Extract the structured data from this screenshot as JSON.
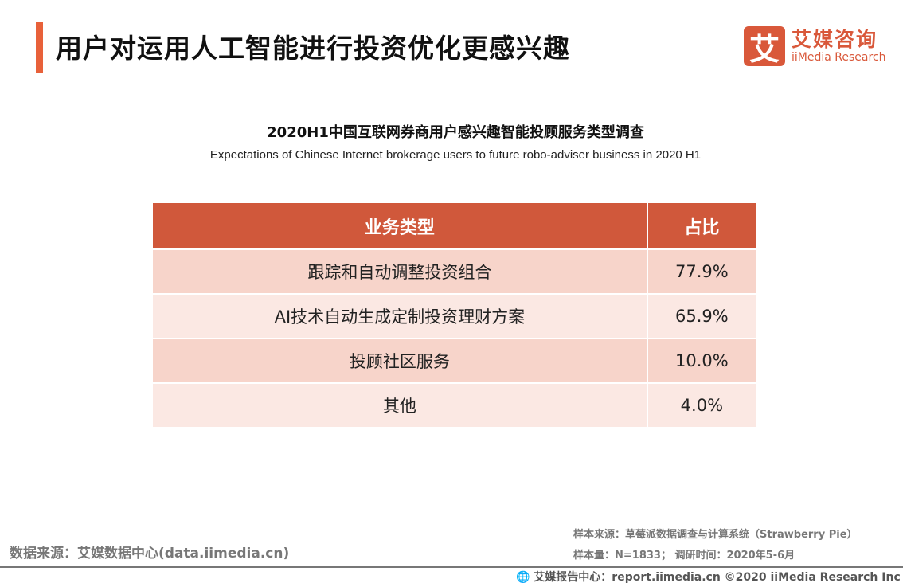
{
  "header": {
    "title": "用户对运用人工智能进行投资优化更感兴趣"
  },
  "logo": {
    "mark": "艾",
    "cn": "艾媒咨询",
    "en": "iiMedia Research",
    "color": "#d9583a"
  },
  "table": {
    "title": "2020H1中国互联网券商用户感兴趣智能投顾服务类型调查",
    "subtitle": "Expectations of Chinese Internet brokerage users to future robo-adviser business in 2020 H1",
    "headers": [
      "业务类型",
      "占比"
    ],
    "rows": [
      [
        "跟踪和自动调整投资组合",
        "77.9%"
      ],
      [
        "AI技术自动生成定制投资理财方案",
        "65.9%"
      ],
      [
        "投顾社区服务",
        "10.0%"
      ],
      [
        "其他",
        "4.0%"
      ]
    ]
  },
  "footer": {
    "source": "数据来源：艾媒数据中心(data.iimedia.cn)",
    "sample_source": "样本来源：草莓派数据调查与计算系统（Strawberry Pie）",
    "sample_size": "样本量：N=1833； 调研时间：2020年5-6月",
    "report": "艾媒报告中心：report.iimedia.cn   ©2020  iiMedia Research  Inc"
  }
}
